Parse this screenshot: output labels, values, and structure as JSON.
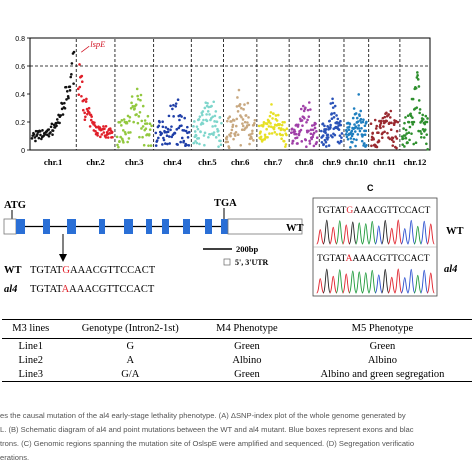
{
  "panel_c_label": "C",
  "chart_data": {
    "type": "scatter",
    "title": "",
    "xlabel": "",
    "ylabel": "",
    "ylim": [
      0,
      0.8
    ],
    "yticks": [
      "0",
      "0.2",
      "0.4",
      "0.6",
      "0.8"
    ],
    "threshold": 0.6,
    "grid": false,
    "categories": [
      "chr.1",
      "chr.2",
      "chr.3",
      "chr.4",
      "chr.5",
      "chr.6",
      "chr.7",
      "chr.8",
      "chr.9",
      "chr.10",
      "chr.11",
      "chr.12"
    ],
    "series": [
      {
        "category": "chr.1",
        "color": "#111111",
        "typical": 0.1,
        "peak": 0.72
      },
      {
        "category": "chr.2",
        "color": "#e0202a",
        "typical": 0.12,
        "peak": 0.73
      },
      {
        "category": "chr.3",
        "color": "#92c83e",
        "typical": 0.12,
        "peak": 0.42
      },
      {
        "category": "chr.4",
        "color": "#1f3fa8",
        "typical": 0.1,
        "peak": 0.34
      },
      {
        "category": "chr.5",
        "color": "#7fd6cc",
        "typical": 0.12,
        "peak": 0.38
      },
      {
        "category": "chr.6",
        "color": "#c8a880",
        "typical": 0.12,
        "peak": 0.42
      },
      {
        "category": "chr.7",
        "color": "#e7e024",
        "typical": 0.1,
        "peak": 0.28
      },
      {
        "category": "chr.8",
        "color": "#a040a8",
        "typical": 0.1,
        "peak": 0.35
      },
      {
        "category": "chr.9",
        "color": "#2a52b8",
        "typical": 0.1,
        "peak": 0.34
      },
      {
        "category": "chr.10",
        "color": "#1f7fbf",
        "typical": 0.1,
        "peak": 0.34
      },
      {
        "category": "chr.11",
        "color": "#9a2a30",
        "typical": 0.1,
        "peak": 0.3
      },
      {
        "category": "chr.12",
        "color": "#2e8f2e",
        "typical": 0.12,
        "peak": 0.58
      }
    ],
    "annotation": {
      "text": "lspE",
      "x_category": "chr.2",
      "y": 0.72,
      "color": "#d01020"
    }
  },
  "gene": {
    "start_codon": "ATG",
    "stop_codon": "TGA",
    "wt_label": "WT",
    "scale_label": "200bp",
    "utr_legend": "5', 3'UTR",
    "exon_color": "#2a6fd6"
  },
  "alignment": {
    "wt_label": "WT",
    "wt_seq_before": "TGTAT",
    "wt_seq_snp": "G",
    "wt_seq_after": "AAACGTTCCACT",
    "al4_label": "al4",
    "al4_seq_before": "TGTAT",
    "al4_seq_snp": "A",
    "al4_seq_after": "AAACGTTCCACT"
  },
  "chromatograms": [
    {
      "before": "TGTAT",
      "snp": "G",
      "after": "AAACGTTCCACT",
      "label": "WT"
    },
    {
      "before": "TGTAT",
      "snp": "A",
      "after": "AAACGTTCCACT",
      "label": "al4"
    }
  ],
  "table": {
    "headers": [
      "M3 lines",
      "Genotype (Intron2-1st)",
      "M4 Phenotype",
      "M5 Phenotype"
    ],
    "rows": [
      [
        "Line1",
        "G",
        "Green",
        "Green"
      ],
      [
        "Line2",
        "A",
        "Albino",
        "Albino"
      ],
      [
        "Line3",
        "G/A",
        "Green",
        "Albino and green segregation"
      ]
    ]
  },
  "caption": [
    "es the causal mutation of the al4 early-stage lethality phenotype. (A) ΔSNP-index plot of the whole genome generated by",
    "L. (B) Schematic diagram of al4 and point mutations between the WT and al4 mutant. Blue boxes represent exons and blac",
    "trons. (C) Genomic regions spanning the mutation site of OslspE were amplified and sequenced. (D) Segregation verificatio",
    "erations."
  ]
}
